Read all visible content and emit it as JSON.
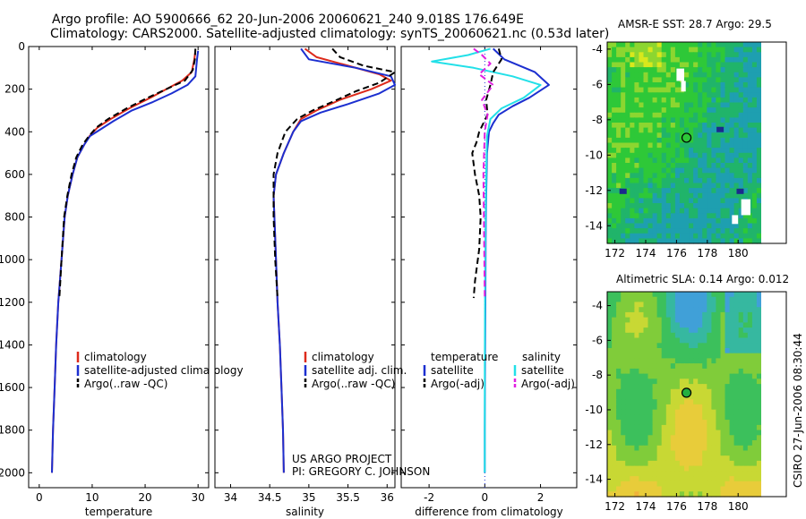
{
  "titles": {
    "line1": "Argo profile: AO 5900666_62 20-Jun-2006 20060621_240 9.018S 176.649E",
    "line2": "Climatology: CARS2000. Satellite-adjusted climatology: synTS_20060621.nc (0.53d later)",
    "sst_title": "AMSR-E SST: 28.7 Argo: 29.5",
    "sla_title": "Altimetric SLA: 0.14 Argo: 0.012",
    "side_stamp": "CSIRO 27-Jun-2006 08:30:44",
    "credit1": "US ARGO PROJECT",
    "credit2": "PI: GREGORY C. JOHNSON"
  },
  "colors": {
    "red": "#dd2a1b",
    "blue": "#1c2fd0",
    "black": "#000000",
    "cyan": "#22e0e8",
    "magenta": "#e020e0"
  },
  "chart_data": [
    {
      "type": "line",
      "xlabel": "temperature",
      "ylabel": "",
      "xlim": [
        -2,
        32
      ],
      "ylim": [
        2070,
        0
      ],
      "xticks": [
        0,
        10,
        20,
        30
      ],
      "yticks": [
        0,
        200,
        400,
        600,
        800,
        1000,
        1200,
        1400,
        1600,
        1800,
        2000
      ],
      "legend": [
        "climatology",
        "satellite-adjusted climatology",
        "Argo(..raw -QC)"
      ],
      "series": [
        {
          "name": "climatology",
          "color": "red",
          "style": "solid",
          "x": [
            29.5,
            29.3,
            28.8,
            27.0,
            24.0,
            21.0,
            17.0,
            13.5,
            11.0,
            9.5,
            8.5,
            7.2,
            6.3,
            5.4,
            4.8,
            4.2,
            3.6,
            3.2,
            2.9,
            2.6,
            2.4
          ],
          "y": [
            20,
            60,
            120,
            160,
            200,
            240,
            290,
            340,
            380,
            420,
            460,
            520,
            600,
            700,
            800,
            1000,
            1200,
            1400,
            1600,
            1800,
            2000
          ]
        },
        {
          "name": "satellite-adjusted climatology",
          "color": "blue",
          "style": "solid",
          "x": [
            30.0,
            29.8,
            29.5,
            28.0,
            25.0,
            21.5,
            17.5,
            14.0,
            11.5,
            9.6,
            8.5,
            7.2,
            6.3,
            5.4,
            4.8,
            4.2,
            3.6,
            3.2,
            2.9,
            2.6,
            2.4
          ],
          "y": [
            20,
            60,
            140,
            180,
            220,
            260,
            300,
            350,
            390,
            420,
            460,
            520,
            600,
            700,
            800,
            1000,
            1200,
            1400,
            1600,
            1800,
            2000
          ]
        },
        {
          "name": "Argo(..raw -QC)",
          "color": "black",
          "style": "dashed",
          "x": [
            29.5,
            29.4,
            29.0,
            27.5,
            24.0,
            20.5,
            16.5,
            13.0,
            10.8,
            9.4,
            8.2,
            7.0,
            6.1,
            5.3,
            4.7,
            4.2,
            3.8
          ],
          "y": [
            10,
            60,
            110,
            160,
            200,
            240,
            290,
            340,
            380,
            420,
            460,
            520,
            600,
            700,
            800,
            1000,
            1180
          ]
        }
      ]
    },
    {
      "type": "line",
      "xlabel": "salinity",
      "xlim": [
        33.8,
        36.1
      ],
      "ylim": [
        2070,
        0
      ],
      "xticks": [
        34,
        34.5,
        35,
        35.5,
        36
      ],
      "yticks": [
        0,
        200,
        400,
        600,
        800,
        1000,
        1200,
        1400,
        1600,
        1800,
        2000
      ],
      "legend": [
        "climatology",
        "satellite adj. clim.",
        "Argo(..raw -QC)"
      ],
      "series": [
        {
          "name": "climatology",
          "color": "red",
          "style": "solid",
          "x": [
            34.95,
            35.1,
            35.5,
            35.9,
            36.05,
            35.8,
            35.4,
            35.1,
            34.9,
            34.8,
            34.68,
            34.58,
            34.55,
            34.56,
            34.58,
            34.6,
            34.63,
            34.65,
            34.67,
            34.68
          ],
          "y": [
            10,
            50,
            90,
            130,
            160,
            200,
            250,
            300,
            340,
            400,
            500,
            600,
            700,
            800,
            1000,
            1200,
            1400,
            1600,
            1800,
            2000
          ]
        },
        {
          "name": "satellite adj. clim.",
          "color": "blue",
          "style": "solid",
          "x": [
            34.9,
            35.0,
            35.6,
            36.05,
            36.1,
            35.9,
            35.5,
            35.15,
            34.9,
            34.8,
            34.68,
            34.58,
            34.55,
            34.56,
            34.58,
            34.6,
            34.63,
            34.65,
            34.67,
            34.68
          ],
          "y": [
            10,
            60,
            100,
            140,
            180,
            220,
            270,
            310,
            350,
            400,
            500,
            600,
            700,
            800,
            1000,
            1200,
            1400,
            1600,
            1800,
            2000
          ]
        },
        {
          "name": "Argo(..raw -QC)",
          "color": "black",
          "style": "dashed",
          "x": [
            35.3,
            35.4,
            35.7,
            36.1,
            35.9,
            35.6,
            35.3,
            35.05,
            34.85,
            34.7,
            34.6,
            34.55,
            34.55,
            34.57,
            34.6
          ],
          "y": [
            10,
            50,
            90,
            120,
            170,
            210,
            260,
            300,
            340,
            400,
            500,
            600,
            800,
            1000,
            1180
          ]
        }
      ]
    },
    {
      "type": "line",
      "xlabel": "difference from climatology",
      "xlim": [
        -3,
        3.3
      ],
      "ylim": [
        2070,
        0
      ],
      "xticks": [
        -2,
        0,
        2
      ],
      "yticks": [
        0,
        200,
        400,
        600,
        800,
        1000,
        1200,
        1400,
        1600,
        1800,
        2000
      ],
      "legend_left_title": "temperature",
      "legend_right_title": "salinity",
      "legend_left": [
        "satellite",
        "Argo(-adj)"
      ],
      "legend_right": [
        "satellite",
        "Argo(-adj)"
      ],
      "series": [
        {
          "name": "temperature satellite",
          "color": "blue",
          "style": "solid",
          "x": [
            0.3,
            0.7,
            1.8,
            2.3,
            1.6,
            1.0,
            0.5,
            0.3,
            0.15,
            0.08,
            0.05,
            0.03,
            0.02,
            0.01,
            0.0,
            0.0
          ],
          "y": [
            10,
            60,
            120,
            180,
            240,
            280,
            320,
            360,
            400,
            500,
            700,
            900,
            1200,
            1500,
            1800,
            2000
          ]
        },
        {
          "name": "salinity satellite",
          "color": "cyan",
          "style": "solid",
          "x": [
            0.2,
            -0.6,
            -1.9,
            -0.4,
            1.0,
            2.0,
            1.4,
            0.6,
            0.2,
            0.08,
            0.05,
            0.02,
            0.01,
            0.0,
            0.0,
            0.0
          ],
          "y": [
            10,
            40,
            70,
            100,
            140,
            180,
            240,
            290,
            340,
            420,
            600,
            900,
            1200,
            1500,
            1800,
            2000
          ]
        },
        {
          "name": "temperature Argo(-adj)",
          "color": "black",
          "style": "dashed",
          "x": [
            0.5,
            0.6,
            0.3,
            0.2,
            0.05,
            0.1,
            -0.2,
            -0.3,
            -0.45,
            -0.35,
            -0.2,
            -0.15,
            -0.2,
            -0.35,
            -0.4
          ],
          "y": [
            10,
            60,
            120,
            180,
            250,
            320,
            400,
            450,
            500,
            600,
            700,
            800,
            950,
            1100,
            1180
          ]
        },
        {
          "name": "salinity Argo(-adj)",
          "color": "magenta",
          "style": "dashed",
          "x": [
            -0.4,
            -0.1,
            0.2,
            -0.2,
            0.3,
            -0.1,
            0.1,
            0.0,
            -0.05,
            0.0
          ],
          "y": [
            10,
            40,
            80,
            130,
            180,
            250,
            320,
            400,
            600,
            1180
          ]
        }
      ]
    },
    {
      "type": "heatmap",
      "title": "AMSR-E SST: 28.7 Argo: 29.5",
      "xlim": [
        171.5,
        181.5
      ],
      "ylim": [
        -15,
        -3.6
      ],
      "xticks": [
        172,
        174,
        176,
        178,
        180
      ],
      "yticks": [
        -4,
        -6,
        -8,
        -10,
        -12,
        -14
      ],
      "marker": {
        "lon": 176.649,
        "lat": -9.018
      }
    },
    {
      "type": "heatmap",
      "title": "Altimetric SLA: 0.14 Argo: 0.012",
      "xlim": [
        171.5,
        181.5
      ],
      "ylim": [
        -15,
        -3.2
      ],
      "xticks": [
        172,
        174,
        176,
        178,
        180
      ],
      "yticks": [
        -4,
        -6,
        -8,
        -10,
        -12,
        -14
      ],
      "marker": {
        "lon": 176.649,
        "lat": -9.018
      }
    }
  ]
}
